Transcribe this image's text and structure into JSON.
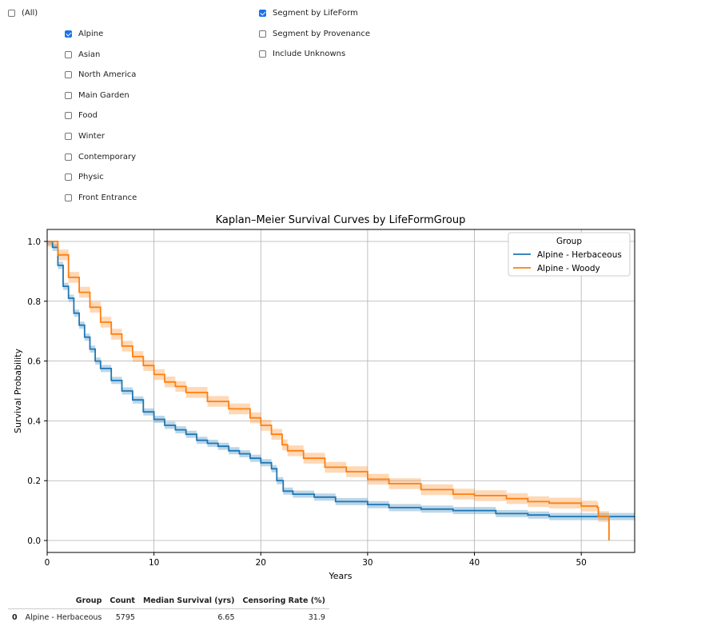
{
  "filters": {
    "all": {
      "label": "(All)",
      "checked": false
    },
    "gardens": [
      {
        "label": "Alpine",
        "checked": true
      },
      {
        "label": "Asian",
        "checked": false
      },
      {
        "label": "North America",
        "checked": false
      },
      {
        "label": "Main Garden",
        "checked": false
      },
      {
        "label": "Food",
        "checked": false
      },
      {
        "label": "Winter",
        "checked": false
      },
      {
        "label": "Contemporary",
        "checked": false
      },
      {
        "label": "Physic",
        "checked": false
      },
      {
        "label": "Front Entrance",
        "checked": false
      }
    ],
    "options": [
      {
        "label": "Segment by LifeForm",
        "checked": true
      },
      {
        "label": "Segment by Provenance",
        "checked": false
      },
      {
        "label": "Include Unknowns",
        "checked": false
      }
    ]
  },
  "chart_data": {
    "type": "line",
    "title": "Kaplan–Meier Survival Curves by LifeFormGroup",
    "xlabel": "Years",
    "ylabel": "Survival Probability",
    "xlim": [
      0,
      55
    ],
    "ylim": [
      -0.04,
      1.04
    ],
    "xticks": [
      0,
      10,
      20,
      30,
      40,
      50
    ],
    "yticks": [
      0.0,
      0.2,
      0.4,
      0.6,
      0.8,
      1.0
    ],
    "grid": true,
    "legend": {
      "title": "Group",
      "position": "top-right"
    },
    "series": [
      {
        "name": "Alpine - Herbaceous",
        "color": "#1f77b4",
        "band": 0.012,
        "points": [
          [
            0,
            1.0
          ],
          [
            0.5,
            0.98
          ],
          [
            1,
            0.92
          ],
          [
            1.5,
            0.85
          ],
          [
            2,
            0.81
          ],
          [
            2.5,
            0.76
          ],
          [
            3,
            0.72
          ],
          [
            3.5,
            0.68
          ],
          [
            4,
            0.64
          ],
          [
            4.5,
            0.6
          ],
          [
            5,
            0.575
          ],
          [
            6,
            0.535
          ],
          [
            7,
            0.5
          ],
          [
            8,
            0.47
          ],
          [
            9,
            0.43
          ],
          [
            10,
            0.405
          ],
          [
            11,
            0.385
          ],
          [
            12,
            0.37
          ],
          [
            13,
            0.355
          ],
          [
            14,
            0.335
          ],
          [
            15,
            0.325
          ],
          [
            16,
            0.315
          ],
          [
            17,
            0.3
          ],
          [
            18,
            0.29
          ],
          [
            19,
            0.275
          ],
          [
            20,
            0.26
          ],
          [
            21,
            0.24
          ],
          [
            21.5,
            0.2
          ],
          [
            22,
            0.2
          ],
          [
            22.1,
            0.165
          ],
          [
            23,
            0.155
          ],
          [
            25,
            0.145
          ],
          [
            27,
            0.13
          ],
          [
            30,
            0.12
          ],
          [
            32,
            0.11
          ],
          [
            35,
            0.105
          ],
          [
            38,
            0.1
          ],
          [
            40,
            0.1
          ],
          [
            42,
            0.09
          ],
          [
            45,
            0.085
          ],
          [
            47,
            0.08
          ],
          [
            50,
            0.08
          ],
          [
            52,
            0.08
          ],
          [
            55,
            0.08
          ]
        ]
      },
      {
        "name": "Alpine - Woody",
        "color": "#ff7f0e",
        "band": 0.018,
        "points": [
          [
            0,
            1.0
          ],
          [
            1,
            0.955
          ],
          [
            2,
            0.88
          ],
          [
            3,
            0.83
          ],
          [
            4,
            0.78
          ],
          [
            5,
            0.73
          ],
          [
            6,
            0.69
          ],
          [
            7,
            0.65
          ],
          [
            8,
            0.615
          ],
          [
            9,
            0.585
          ],
          [
            10,
            0.555
          ],
          [
            11,
            0.53
          ],
          [
            12,
            0.515
          ],
          [
            13,
            0.495
          ],
          [
            15,
            0.465
          ],
          [
            17,
            0.44
          ],
          [
            19,
            0.41
          ],
          [
            20,
            0.385
          ],
          [
            21,
            0.355
          ],
          [
            22,
            0.32
          ],
          [
            22.5,
            0.3
          ],
          [
            24,
            0.275
          ],
          [
            26,
            0.245
          ],
          [
            28,
            0.23
          ],
          [
            30,
            0.205
          ],
          [
            32,
            0.19
          ],
          [
            35,
            0.17
          ],
          [
            38,
            0.155
          ],
          [
            40,
            0.15
          ],
          [
            43,
            0.14
          ],
          [
            45,
            0.13
          ],
          [
            47,
            0.125
          ],
          [
            50,
            0.115
          ],
          [
            51.5,
            0.11
          ],
          [
            51.6,
            0.08
          ],
          [
            52.5,
            0.08
          ],
          [
            52.6,
            0.0
          ]
        ]
      }
    ]
  },
  "stats_table": {
    "columns": [
      "Group",
      "Count",
      "Median Survival (yrs)",
      "Censoring Rate (%)"
    ],
    "rows": [
      {
        "index": "0",
        "group": "Alpine - Herbaceous",
        "count": "5795",
        "median": "6.65",
        "censoring": "31.9"
      }
    ]
  }
}
